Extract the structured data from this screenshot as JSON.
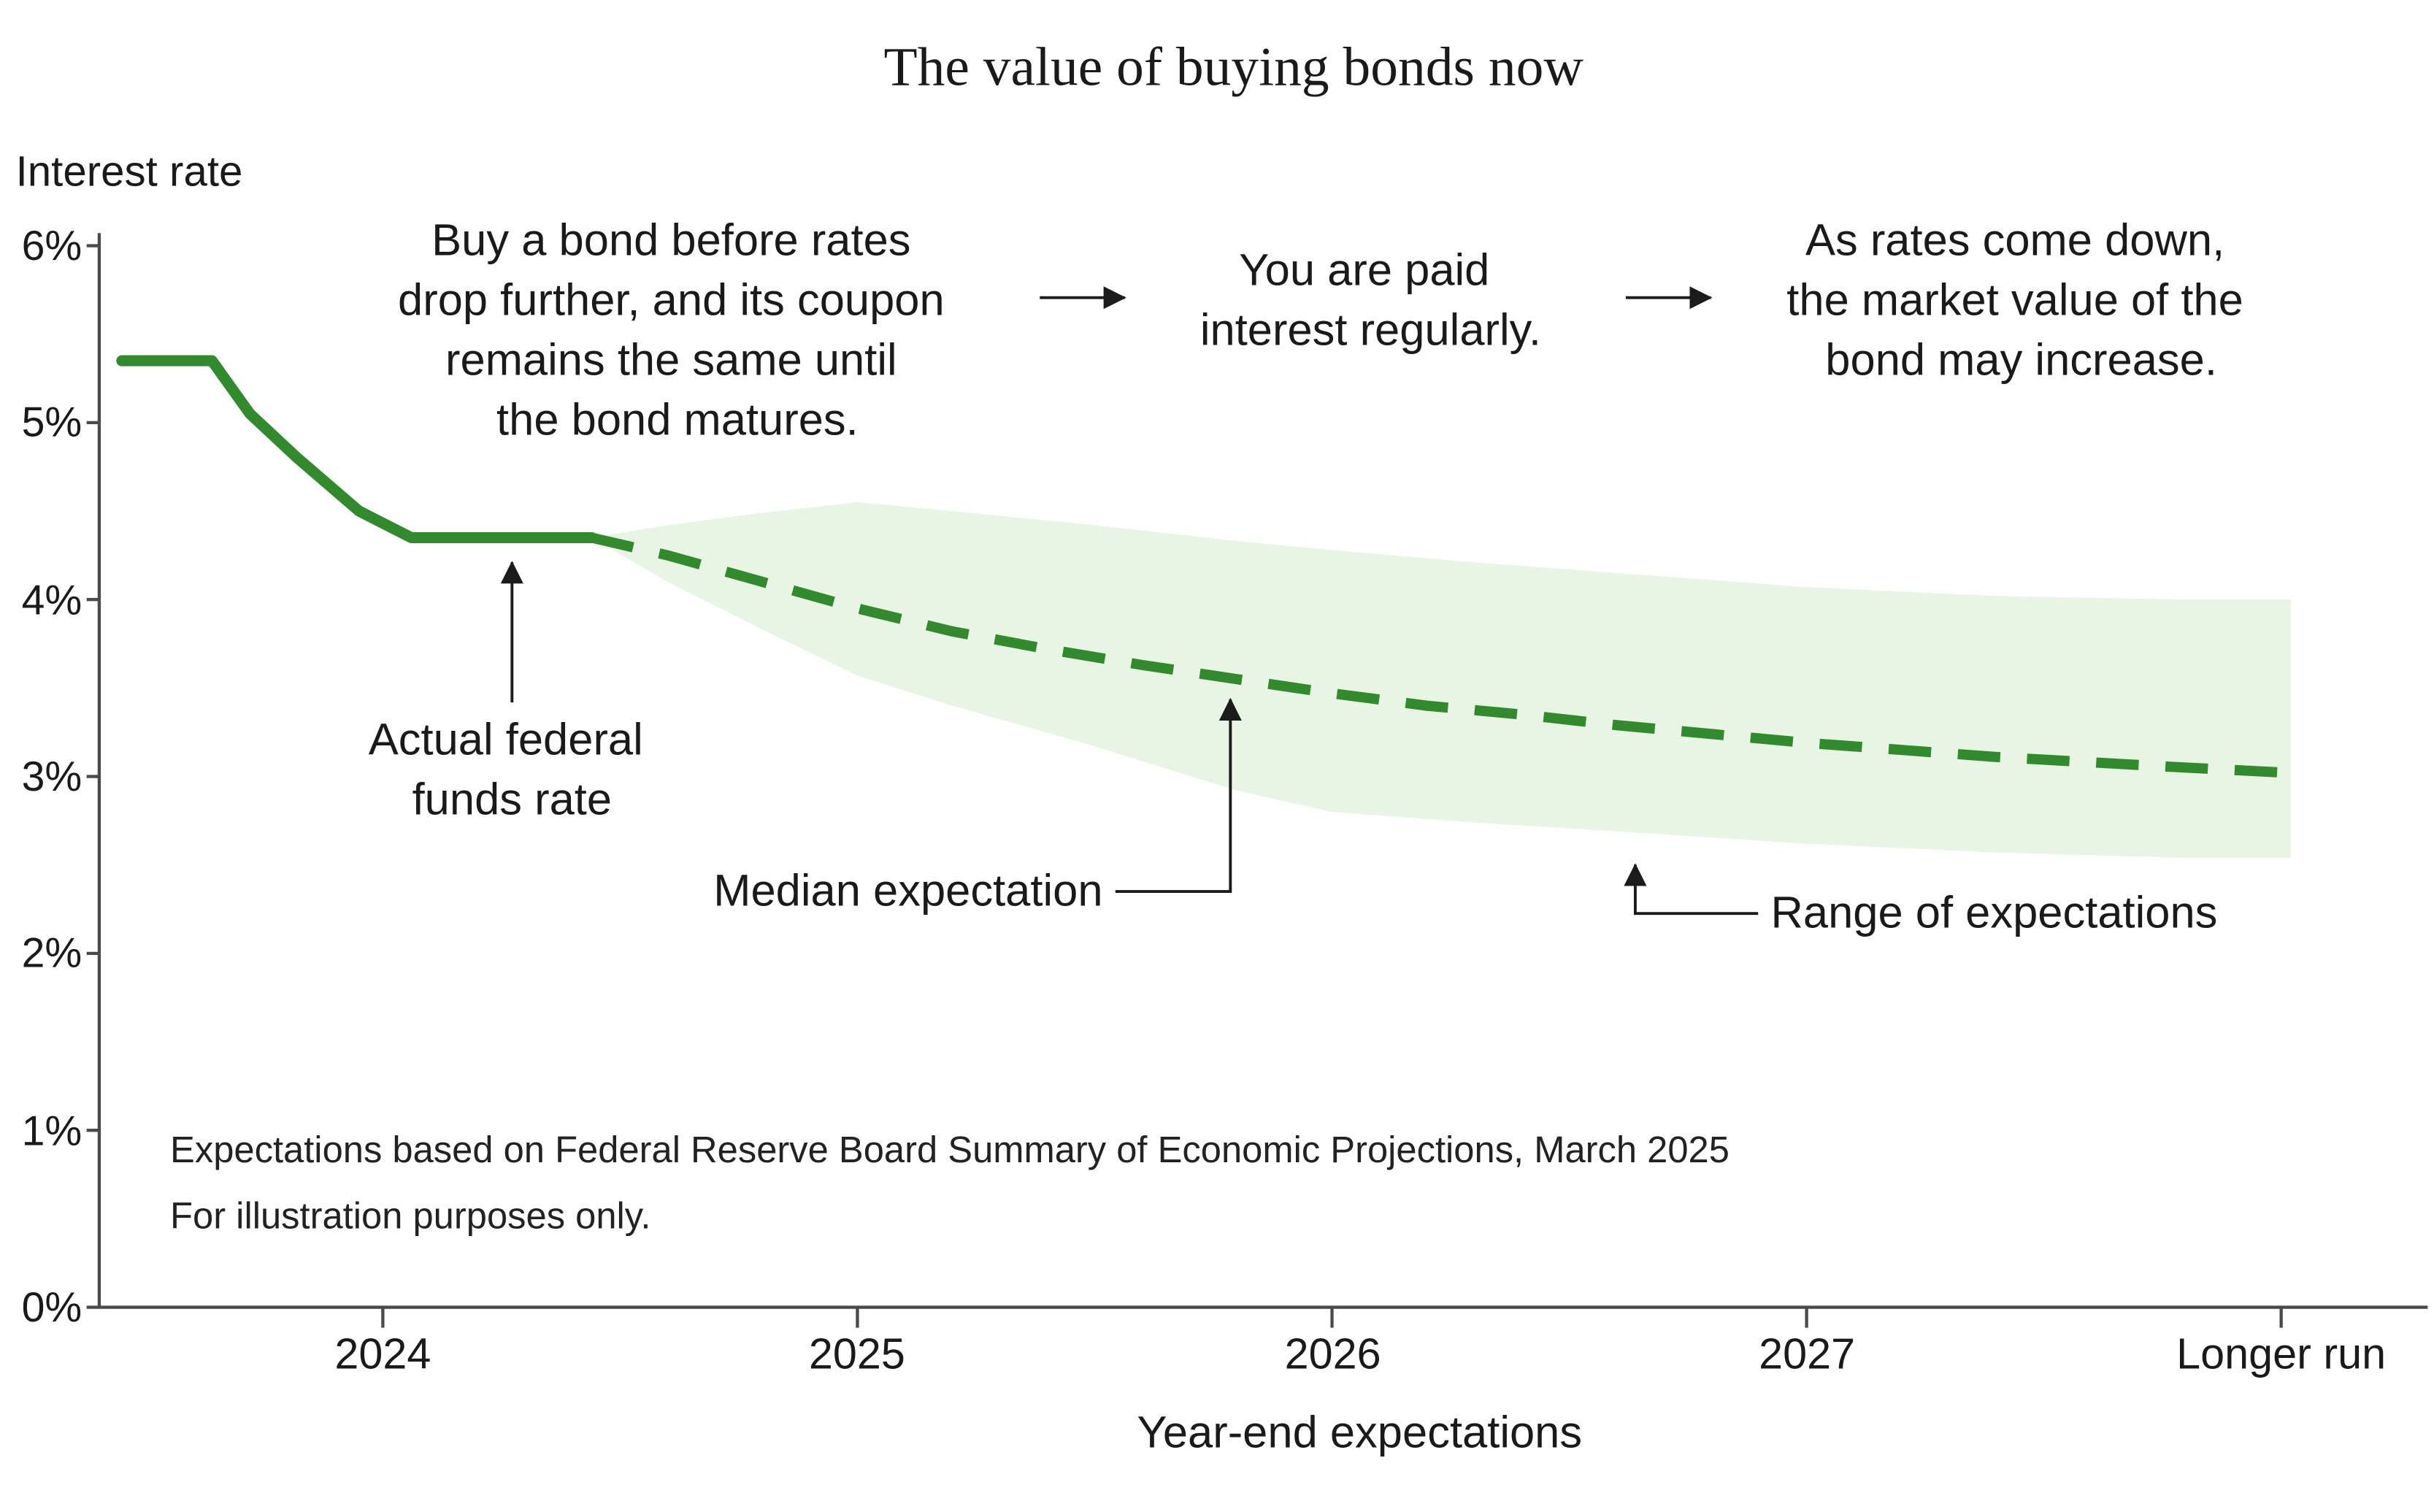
{
  "title": "The value of buying bonds now",
  "axes": {
    "y_title": "Interest rate",
    "x_title": "Year-end expectations"
  },
  "footnotes": {
    "line1": "Expectations based on Federal Reserve Board Summary of Economic Projections, March 2025",
    "line2": "For illustration purposes only."
  },
  "annotations": {
    "buy": {
      "lines": [
        "Buy a bond before rates",
        "drop further, and its coupon",
        "remains the same until",
        "the bond matures."
      ]
    },
    "paid": {
      "lines": [
        "You are paid",
        "interest regularly."
      ]
    },
    "market_value": {
      "lines": [
        "As rates come down,",
        "the market value of the",
        "bond may increase."
      ]
    },
    "actual_rate": {
      "lines": [
        "Actual federal",
        "funds rate"
      ]
    },
    "median_label": "Median expectation",
    "range_label": "Range of expectations"
  },
  "colors": {
    "line_green": "#338a2e",
    "band_green": "#e8f4e4",
    "text": "#1a1a1a",
    "axis": "#4a4a4a"
  },
  "chart_data": {
    "type": "line",
    "title": "The value of buying bonds now",
    "xlabel": "Year-end expectations",
    "ylabel": "Interest rate",
    "ylim": [
      0,
      6
    ],
    "grid": false,
    "y_ticks": [
      "0%",
      "1%",
      "2%",
      "3%",
      "4%",
      "5%",
      "6%"
    ],
    "x_ticks": [
      "2024",
      "2025",
      "2026",
      "2027",
      "Longer run"
    ],
    "x_axis_note": "x values are in tick units: 1=2024, 2=2025, 3=2026, 4=2027, 5=Longer run",
    "series": [
      {
        "id": "actual",
        "name": "Actual federal funds rate",
        "style": "solid",
        "color": "#338a2e",
        "points": [
          [
            0.45,
            5.35
          ],
          [
            0.64,
            5.35
          ],
          [
            0.72,
            5.05
          ],
          [
            0.82,
            4.8
          ],
          [
            0.95,
            4.5
          ],
          [
            1.06,
            4.35
          ],
          [
            1.44,
            4.35
          ]
        ]
      },
      {
        "id": "median",
        "name": "Median expectation",
        "style": "dashed",
        "color": "#338a2e",
        "points": [
          [
            1.44,
            4.35
          ],
          [
            1.6,
            4.25
          ],
          [
            1.8,
            4.1
          ],
          [
            2,
            3.95
          ],
          [
            2.2,
            3.82
          ],
          [
            2.4,
            3.72
          ],
          [
            2.6,
            3.63
          ],
          [
            2.8,
            3.55
          ],
          [
            3,
            3.47
          ],
          [
            3.2,
            3.4
          ],
          [
            3.4,
            3.35
          ],
          [
            3.6,
            3.29
          ],
          [
            3.8,
            3.24
          ],
          [
            4,
            3.19
          ],
          [
            4.2,
            3.15
          ],
          [
            4.4,
            3.11
          ],
          [
            4.6,
            3.08
          ],
          [
            4.8,
            3.05
          ],
          [
            5.02,
            3.02
          ]
        ]
      }
    ],
    "band": {
      "name": "Range of expectations",
      "color": "#e8f4e4",
      "x": [
        1.44,
        1.6,
        1.8,
        2.0,
        2.2,
        2.5,
        2.8,
        3.0,
        3.3,
        3.6,
        4.0,
        4.4,
        4.8,
        5.02
      ],
      "upper": [
        4.35,
        4.42,
        4.49,
        4.55,
        4.5,
        4.42,
        4.33,
        4.28,
        4.21,
        4.15,
        4.07,
        4.02,
        4.0,
        4.0
      ],
      "lower": [
        4.35,
        4.1,
        3.83,
        3.57,
        3.4,
        3.17,
        2.92,
        2.8,
        2.74,
        2.69,
        2.62,
        2.57,
        2.54,
        2.54
      ]
    }
  }
}
